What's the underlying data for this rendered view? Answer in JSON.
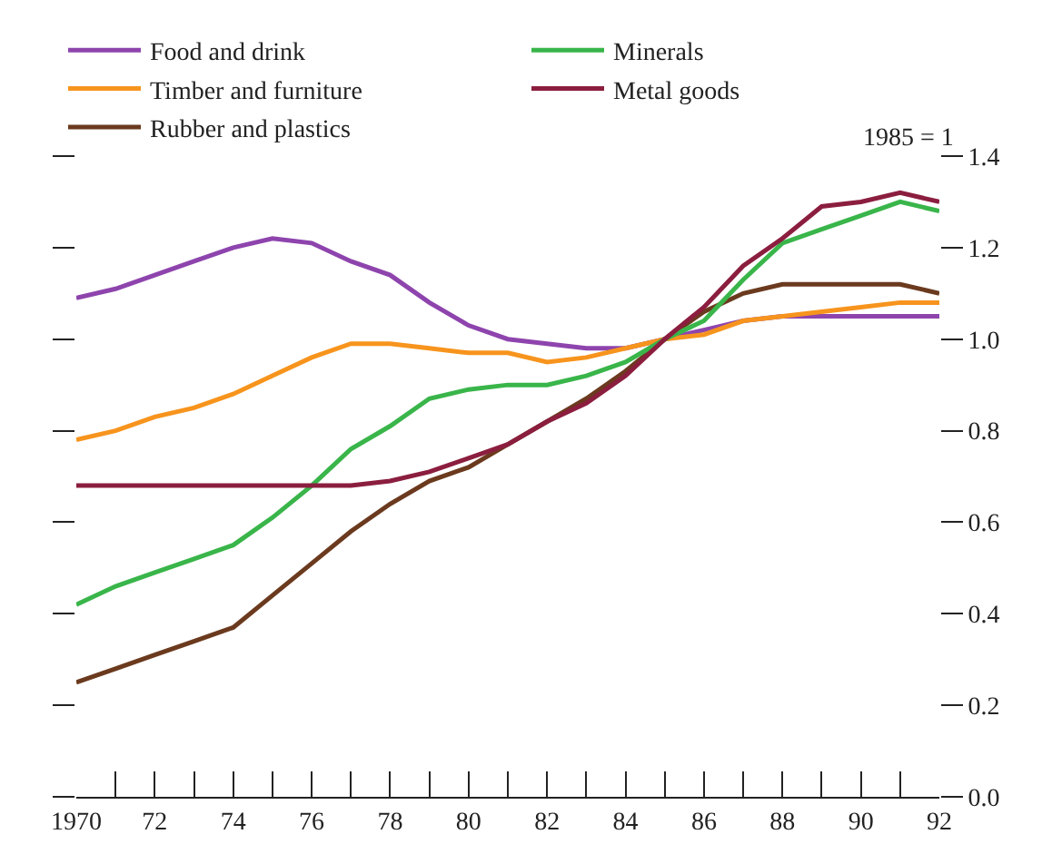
{
  "chart_data": {
    "type": "line",
    "annotations": [
      "1985 = 1"
    ],
    "x": [
      1970,
      1971,
      1972,
      1973,
      1974,
      1975,
      1976,
      1977,
      1978,
      1979,
      1980,
      1981,
      1982,
      1983,
      1984,
      1985,
      1986,
      1987,
      1988,
      1989,
      1990,
      1991,
      1992
    ],
    "series": [
      {
        "name": "Food and drink",
        "color": "#8e44ad",
        "values": [
          1.09,
          1.11,
          1.14,
          1.17,
          1.2,
          1.22,
          1.21,
          1.17,
          1.14,
          1.08,
          1.03,
          1.0,
          0.99,
          0.98,
          0.98,
          1.0,
          1.02,
          1.04,
          1.05,
          1.05,
          1.05,
          1.05,
          1.05
        ]
      },
      {
        "name": "Timber and furniture",
        "color": "#f7941d",
        "values": [
          0.78,
          0.8,
          0.83,
          0.85,
          0.88,
          0.92,
          0.96,
          0.99,
          0.99,
          0.98,
          0.97,
          0.97,
          0.95,
          0.96,
          0.98,
          1.0,
          1.01,
          1.04,
          1.05,
          1.06,
          1.07,
          1.08,
          1.08
        ]
      },
      {
        "name": "Rubber and plastics",
        "color": "#6b3a1e",
        "values": [
          0.25,
          0.28,
          0.31,
          0.34,
          0.37,
          0.44,
          0.51,
          0.58,
          0.64,
          0.69,
          0.72,
          0.77,
          0.82,
          0.87,
          0.93,
          1.0,
          1.06,
          1.1,
          1.12,
          1.12,
          1.12,
          1.12,
          1.1
        ]
      },
      {
        "name": "Minerals",
        "color": "#39b54a",
        "values": [
          0.42,
          0.46,
          0.49,
          0.52,
          0.55,
          0.61,
          0.68,
          0.76,
          0.81,
          0.87,
          0.89,
          0.9,
          0.9,
          0.92,
          0.95,
          1.0,
          1.04,
          1.13,
          1.21,
          1.24,
          1.27,
          1.3,
          1.28
        ]
      },
      {
        "name": "Metal goods",
        "color": "#8b1e3f",
        "values": [
          0.68,
          0.68,
          0.68,
          0.68,
          0.68,
          0.68,
          0.68,
          0.68,
          0.69,
          0.71,
          0.74,
          0.77,
          0.82,
          0.86,
          0.92,
          1.0,
          1.07,
          1.16,
          1.22,
          1.29,
          1.3,
          1.32,
          1.3
        ]
      }
    ],
    "xlim": [
      1970,
      1992
    ],
    "xticks": [
      {
        "value": 1970,
        "label": "1970"
      },
      {
        "value": 1971,
        "label": null
      },
      {
        "value": 1972,
        "label": "72"
      },
      {
        "value": 1973,
        "label": null
      },
      {
        "value": 1974,
        "label": "74"
      },
      {
        "value": 1975,
        "label": null
      },
      {
        "value": 1976,
        "label": "76"
      },
      {
        "value": 1977,
        "label": null
      },
      {
        "value": 1978,
        "label": "78"
      },
      {
        "value": 1979,
        "label": null
      },
      {
        "value": 1980,
        "label": "80"
      },
      {
        "value": 1981,
        "label": null
      },
      {
        "value": 1982,
        "label": "82"
      },
      {
        "value": 1983,
        "label": null
      },
      {
        "value": 1984,
        "label": "84"
      },
      {
        "value": 1985,
        "label": null
      },
      {
        "value": 1986,
        "label": "86"
      },
      {
        "value": 1987,
        "label": null
      },
      {
        "value": 1988,
        "label": "88"
      },
      {
        "value": 1989,
        "label": null
      },
      {
        "value": 1990,
        "label": "90"
      },
      {
        "value": 1991,
        "label": null
      },
      {
        "value": 1992,
        "label": "92"
      }
    ],
    "ylim": [
      0,
      1.4
    ],
    "yticks": [
      {
        "value": 0,
        "label": "0.0"
      },
      {
        "value": 0.2,
        "label": "0.2"
      },
      {
        "value": 0.4,
        "label": "0.4"
      },
      {
        "value": 0.6,
        "label": "0.6"
      },
      {
        "value": 0.8,
        "label": "0.8"
      },
      {
        "value": 1,
        "label": "1.0"
      },
      {
        "value": 1.2,
        "label": "1.2"
      },
      {
        "value": 1.4,
        "label": "1.4"
      }
    ],
    "grid": false,
    "legend": "top left",
    "marker": "none",
    "line_style": "solid"
  }
}
